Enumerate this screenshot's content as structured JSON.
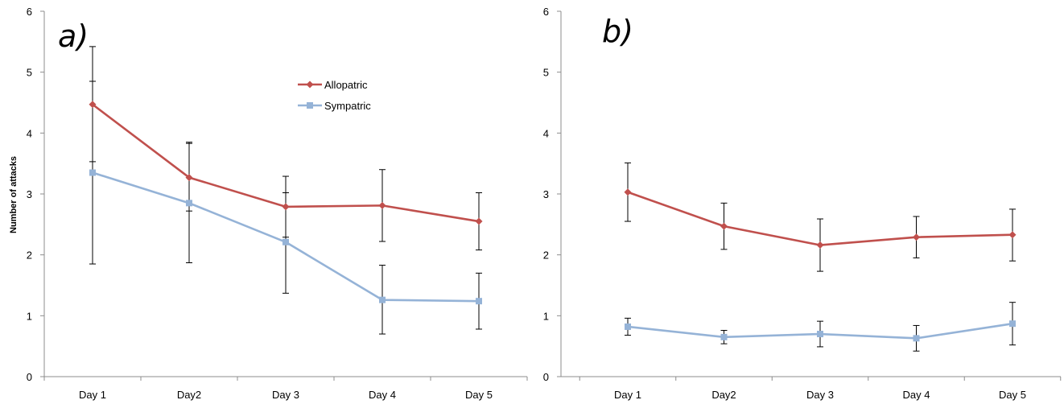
{
  "figure": {
    "y_axis_label": "Number of attacks"
  },
  "legend": {
    "allopatric": "Allopatric",
    "sympatric": "Sympatric"
  },
  "colors": {
    "allopatric": "#c0504d",
    "sympatric": "#95b3d7",
    "errorbar": "#000000",
    "axis": "#8c8c8c"
  },
  "chart_data": [
    {
      "type": "line",
      "panel_label": "a)",
      "categories": [
        "Day 1",
        "Day2",
        "Day 3",
        "Day 4",
        "Day 5"
      ],
      "ylim": [
        0,
        6
      ],
      "yticks": [
        0,
        1,
        2,
        3,
        4,
        5,
        6
      ],
      "ylabel": "Number of attacks",
      "legend_position": "top-center",
      "grid": false,
      "series": [
        {
          "name": "Allopatric",
          "marker": "diamond",
          "values": [
            4.47,
            3.27,
            2.79,
            2.81,
            2.55
          ],
          "err_low": [
            3.53,
            2.72,
            2.29,
            2.22,
            2.08
          ],
          "err_high": [
            5.42,
            3.83,
            3.29,
            3.4,
            3.02
          ]
        },
        {
          "name": "Sympatric",
          "marker": "square",
          "values": [
            3.35,
            2.85,
            2.21,
            1.26,
            1.24
          ],
          "err_low": [
            1.85,
            1.87,
            1.37,
            0.7,
            0.78
          ],
          "err_high": [
            4.85,
            3.85,
            3.02,
            1.83,
            1.7
          ]
        }
      ]
    },
    {
      "type": "line",
      "panel_label": "b)",
      "categories": [
        "Day 1",
        "Day2",
        "Day 3",
        "Day 4",
        "Day 5"
      ],
      "ylim": [
        0,
        6
      ],
      "yticks": [
        0,
        1,
        2,
        3,
        4,
        5,
        6
      ],
      "grid": false,
      "series": [
        {
          "name": "Allopatric",
          "marker": "diamond",
          "values": [
            3.03,
            2.47,
            2.16,
            2.29,
            2.33
          ],
          "err_low": [
            2.55,
            2.09,
            1.73,
            1.95,
            1.9
          ],
          "err_high": [
            3.51,
            2.85,
            2.59,
            2.63,
            2.75
          ]
        },
        {
          "name": "Sympatric",
          "marker": "square",
          "values": [
            0.82,
            0.65,
            0.7,
            0.63,
            0.87
          ],
          "err_low": [
            0.68,
            0.54,
            0.49,
            0.42,
            0.52
          ],
          "err_high": [
            0.96,
            0.76,
            0.91,
            0.84,
            1.22
          ]
        }
      ]
    }
  ]
}
